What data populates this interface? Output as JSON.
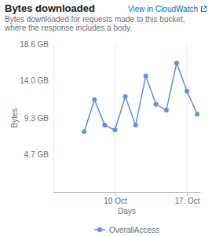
{
  "chart_data": {
    "type": "line",
    "title": "Bytes downloaded",
    "subtitle": "Bytes downloaded for requests made to this bucket, where the response includes a body.",
    "annotations": [
      "View in CloudWatch"
    ],
    "x_label": "Days",
    "y_label": "Bytes",
    "x": [
      7,
      8,
      9,
      10,
      11,
      12,
      13,
      14,
      15,
      16,
      17,
      18
    ],
    "series": [
      {
        "name": "OverallAccess",
        "color": "#688ae8",
        "marker": "circle",
        "values": [
          7.6,
          11.6,
          8.4,
          7.8,
          12.0,
          8.4,
          14.6,
          11.0,
          10.3,
          16.2,
          12.7,
          9.8
        ]
      }
    ],
    "xlim": [
      4,
      18.3
    ],
    "xticks": [
      {
        "value": 10,
        "label": "10 Oct"
      },
      {
        "value": 17,
        "label": "17. Oct"
      }
    ],
    "ylim": [
      0,
      18.6
    ],
    "yticks": [
      {
        "value": 4.7,
        "label": "4.7 GB"
      },
      {
        "value": 9.3,
        "label": "9.3 GB"
      },
      {
        "value": 14.0,
        "label": "14.0 GB"
      },
      {
        "value": 18.6,
        "label": "18.6 GB"
      }
    ],
    "grid": true,
    "legend": "bottom"
  }
}
